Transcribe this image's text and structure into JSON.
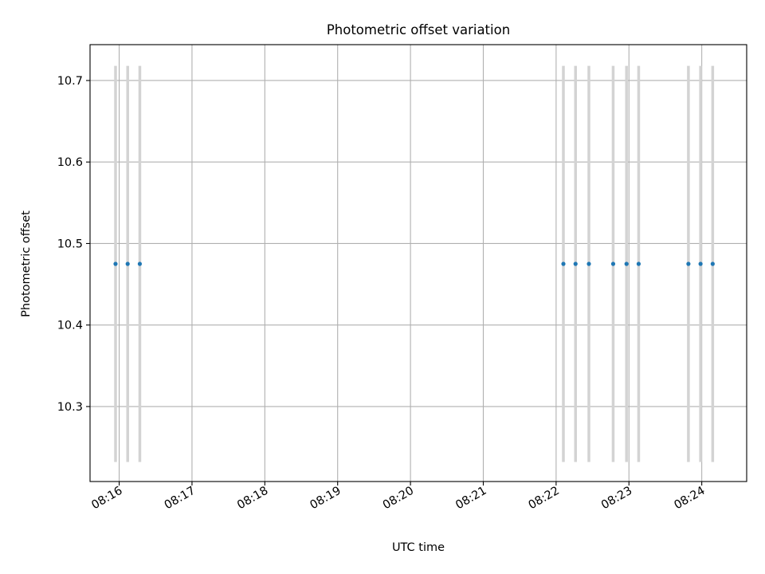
{
  "chart_data": {
    "type": "scatter",
    "title": "Photometric offset variation",
    "xlabel": "UTC time",
    "ylabel": "Photometric offset",
    "x_tick_labels": [
      "08:16",
      "08:17",
      "08:18",
      "08:19",
      "08:20",
      "08:21",
      "08:22",
      "08:23",
      "08:24"
    ],
    "y_tick_labels": [
      "10.3",
      "10.4",
      "10.5",
      "10.6",
      "10.7"
    ],
    "y_ticks": [
      10.3,
      10.4,
      10.5,
      10.6,
      10.7
    ],
    "xlim": [
      "08:15:36",
      "08:24:37"
    ],
    "ylim": [
      10.208,
      10.744
    ],
    "grid": true,
    "series": [
      {
        "x": [
          "08:15:57",
          "08:16:07",
          "08:16:17",
          "08:22:06",
          "08:22:16",
          "08:22:27",
          "08:22:47",
          "08:22:58",
          "08:23:08",
          "08:23:49",
          "08:23:59",
          "08:24:09"
        ],
        "y": [
          10.475,
          10.475,
          10.475,
          10.475,
          10.475,
          10.475,
          10.475,
          10.475,
          10.475,
          10.475,
          10.475,
          10.475
        ],
        "yerr": [
          0.243,
          0.243,
          0.243,
          0.243,
          0.243,
          0.243,
          0.243,
          0.243,
          0.243,
          0.243,
          0.243,
          0.243
        ]
      }
    ],
    "colors": {
      "points": "#1f77b4",
      "errorbars": "#d3d3d3",
      "grid": "#b0b0b0"
    }
  }
}
